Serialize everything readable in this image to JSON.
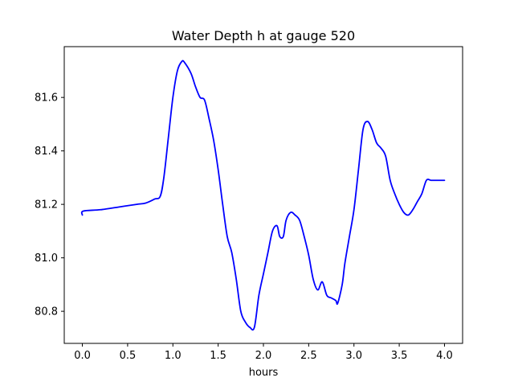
{
  "chart_data": {
    "type": "line",
    "title": "Water Depth h at gauge 520",
    "xlabel": "hours",
    "ylabel": "",
    "xlim": [
      -0.2,
      4.2
    ],
    "ylim": [
      80.68,
      81.79
    ],
    "xticks": [
      0.0,
      0.5,
      1.0,
      1.5,
      2.0,
      2.5,
      3.0,
      3.5,
      4.0
    ],
    "xtick_labels": [
      "0.0",
      "0.5",
      "1.0",
      "1.5",
      "2.0",
      "2.5",
      "3.0",
      "3.5",
      "4.0"
    ],
    "yticks": [
      80.8,
      81.0,
      81.2,
      81.4,
      81.6
    ],
    "ytick_labels": [
      "80.8",
      "81.0",
      "81.2",
      "81.4",
      "81.6"
    ],
    "grid": false,
    "series": [
      {
        "color": "#0000ff",
        "x": [
          0.0,
          0.01,
          0.2,
          0.4,
          0.6,
          0.7,
          0.8,
          0.86,
          0.9,
          0.95,
          1.0,
          1.05,
          1.1,
          1.13,
          1.2,
          1.25,
          1.3,
          1.35,
          1.4,
          1.45,
          1.5,
          1.55,
          1.6,
          1.65,
          1.7,
          1.75,
          1.8,
          1.85,
          1.9,
          1.95,
          2.0,
          2.05,
          2.1,
          2.15,
          2.18,
          2.22,
          2.25,
          2.3,
          2.35,
          2.4,
          2.45,
          2.5,
          2.55,
          2.6,
          2.65,
          2.7,
          2.75,
          2.8,
          2.82,
          2.87,
          2.9,
          2.95,
          3.0,
          3.05,
          3.1,
          3.15,
          3.2,
          3.25,
          3.3,
          3.35,
          3.4,
          3.45,
          3.5,
          3.55,
          3.6,
          3.65,
          3.7,
          3.75,
          3.8,
          3.85,
          3.9,
          3.95,
          4.0
        ],
        "y": [
          81.16,
          81.175,
          81.18,
          81.19,
          81.2,
          81.205,
          81.22,
          81.23,
          81.3,
          81.45,
          81.6,
          81.7,
          81.735,
          81.73,
          81.69,
          81.64,
          81.6,
          81.59,
          81.52,
          81.44,
          81.33,
          81.2,
          81.08,
          81.02,
          80.92,
          80.8,
          80.76,
          80.74,
          80.74,
          80.86,
          80.94,
          81.02,
          81.1,
          81.12,
          81.08,
          81.08,
          81.14,
          81.17,
          81.16,
          81.14,
          81.08,
          81.01,
          80.92,
          80.88,
          80.91,
          80.86,
          80.85,
          80.84,
          80.83,
          80.9,
          80.98,
          81.08,
          81.18,
          81.33,
          81.48,
          81.51,
          81.48,
          81.43,
          81.41,
          81.38,
          81.29,
          81.24,
          81.2,
          81.17,
          81.16,
          81.18,
          81.21,
          81.24,
          81.29,
          81.29,
          81.29,
          81.29,
          81.29
        ]
      }
    ]
  }
}
